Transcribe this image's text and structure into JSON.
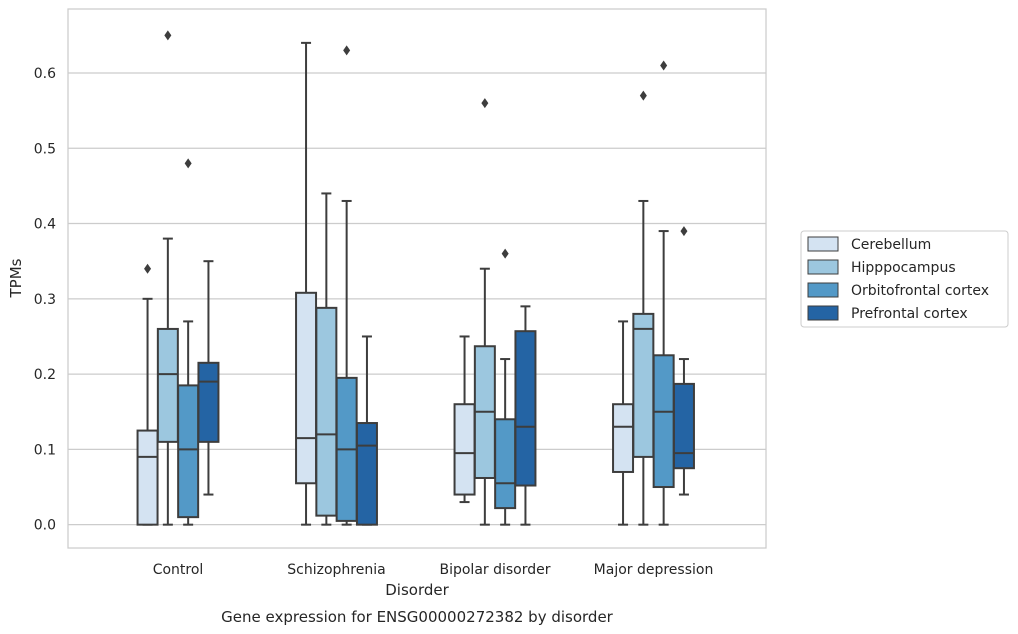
{
  "chart_data": {
    "type": "boxplot",
    "title": "Gene expression for ENSG00000272382 by disorder",
    "xlabel": "Disorder",
    "ylabel": "TPMs",
    "ylim": [
      -0.031,
      0.685
    ],
    "yticks": [
      0.0,
      0.1,
      0.2,
      0.3,
      0.4,
      0.5,
      0.6
    ],
    "ytick_labels": [
      "0.0",
      "0.1",
      "0.2",
      "0.3",
      "0.4",
      "0.5",
      "0.6"
    ],
    "grid": "horizontal",
    "legend_position": "right",
    "categories": [
      "Control",
      "Schizophrenia",
      "Bipolar disorder",
      "Major depression"
    ],
    "colors": [
      "#d4e3f2",
      "#9cc7df",
      "#5399c7",
      "#2464a4"
    ],
    "series": [
      {
        "name": "Cerebellum",
        "boxes": [
          {
            "min": 0.0,
            "q1": 0.0,
            "median": 0.09,
            "q3": 0.125,
            "max": 0.3,
            "outliers": [
              0.34
            ]
          },
          {
            "min": 0.0,
            "q1": 0.055,
            "median": 0.115,
            "q3": 0.308,
            "max": 0.64,
            "outliers": []
          },
          {
            "min": 0.03,
            "q1": 0.04,
            "median": 0.095,
            "q3": 0.16,
            "max": 0.25,
            "outliers": []
          },
          {
            "min": 0.0,
            "q1": 0.07,
            "median": 0.13,
            "q3": 0.16,
            "max": 0.27,
            "outliers": []
          }
        ]
      },
      {
        "name": "Hipppocampus",
        "boxes": [
          {
            "min": 0.0,
            "q1": 0.11,
            "median": 0.2,
            "q3": 0.26,
            "max": 0.38,
            "outliers": [
              0.65
            ]
          },
          {
            "min": 0.0,
            "q1": 0.012,
            "median": 0.12,
            "q3": 0.288,
            "max": 0.44,
            "outliers": []
          },
          {
            "min": 0.0,
            "q1": 0.062,
            "median": 0.15,
            "q3": 0.237,
            "max": 0.34,
            "outliers": [
              0.56
            ]
          },
          {
            "min": 0.0,
            "q1": 0.09,
            "median": 0.26,
            "q3": 0.28,
            "max": 0.43,
            "outliers": [
              0.57
            ]
          }
        ]
      },
      {
        "name": "Orbitofrontal cortex",
        "boxes": [
          {
            "min": 0.0,
            "q1": 0.01,
            "median": 0.1,
            "q3": 0.185,
            "max": 0.27,
            "outliers": [
              0.48
            ]
          },
          {
            "min": 0.0,
            "q1": 0.005,
            "median": 0.1,
            "q3": 0.195,
            "max": 0.43,
            "outliers": [
              0.63
            ]
          },
          {
            "min": 0.0,
            "q1": 0.022,
            "median": 0.055,
            "q3": 0.14,
            "max": 0.22,
            "outliers": [
              0.36
            ]
          },
          {
            "min": 0.0,
            "q1": 0.05,
            "median": 0.15,
            "q3": 0.225,
            "max": 0.39,
            "outliers": [
              0.61
            ]
          }
        ]
      },
      {
        "name": "Prefrontal cortex",
        "boxes": [
          {
            "min": 0.04,
            "q1": 0.11,
            "median": 0.19,
            "q3": 0.215,
            "max": 0.35,
            "outliers": []
          },
          {
            "min": 0.0,
            "q1": 0.0,
            "median": 0.105,
            "q3": 0.135,
            "max": 0.25,
            "outliers": []
          },
          {
            "min": 0.0,
            "q1": 0.052,
            "median": 0.13,
            "q3": 0.257,
            "max": 0.29,
            "outliers": []
          },
          {
            "min": 0.04,
            "q1": 0.075,
            "median": 0.095,
            "q3": 0.187,
            "max": 0.22,
            "outliers": [
              0.39
            ]
          }
        ]
      }
    ]
  }
}
